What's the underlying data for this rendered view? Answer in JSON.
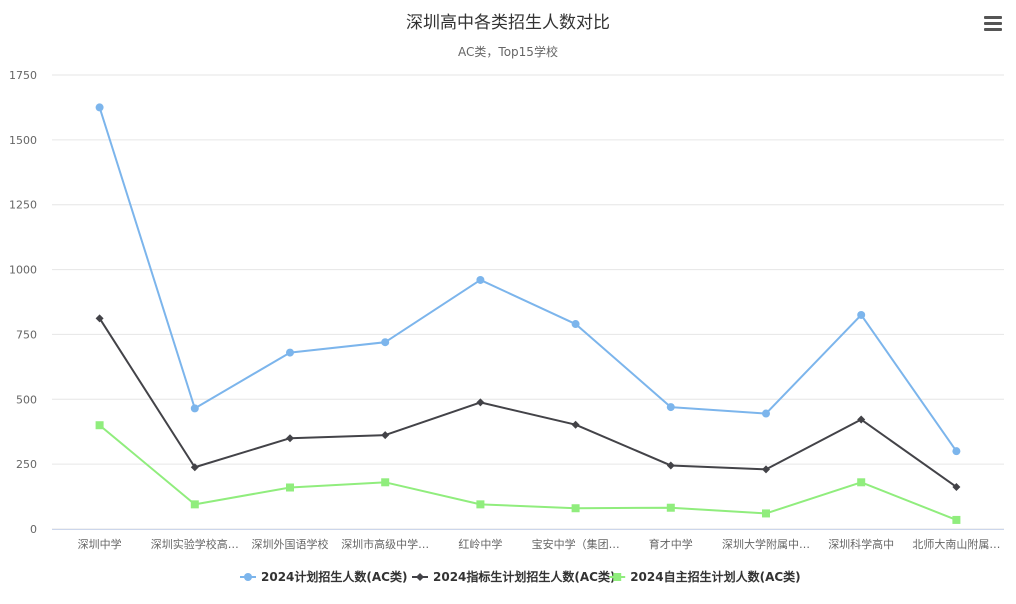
{
  "chart_data": {
    "type": "line",
    "title": "深圳高中各类招生人数对比",
    "subtitle": "AC类，Top15学校",
    "categories": [
      "深圳中学",
      "深圳实验学校高…",
      "深圳外国语学校",
      "深圳市高级中学…",
      "红岭中学",
      "宝安中学（集团…",
      "育才中学",
      "深圳大学附属中…",
      "深圳科学高中",
      "北师大南山附属…"
    ],
    "yticks": [
      0,
      250,
      500,
      750,
      1000,
      1250,
      1500,
      1750
    ],
    "ylim": [
      0,
      1750
    ],
    "grid": true,
    "legend_position": "bottom-center",
    "series": [
      {
        "name": "2024计划招生人数(AC类)",
        "color": "#7cb5ec",
        "marker": "circle",
        "values": [
          1625,
          465,
          680,
          720,
          960,
          790,
          470,
          445,
          825,
          300
        ]
      },
      {
        "name": "2024指标生计划招生人数(AC类)",
        "color": "#434348",
        "marker": "diamond",
        "values": [
          812,
          238,
          350,
          362,
          488,
          402,
          245,
          230,
          422,
          162
        ]
      },
      {
        "name": "2024自主招生计划人数(AC类)",
        "color": "#90ed7d",
        "marker": "square",
        "values": [
          400,
          95,
          160,
          180,
          95,
          80,
          82,
          60,
          180,
          35
        ]
      }
    ]
  },
  "menu": {
    "icon": "hamburger-menu-icon"
  }
}
